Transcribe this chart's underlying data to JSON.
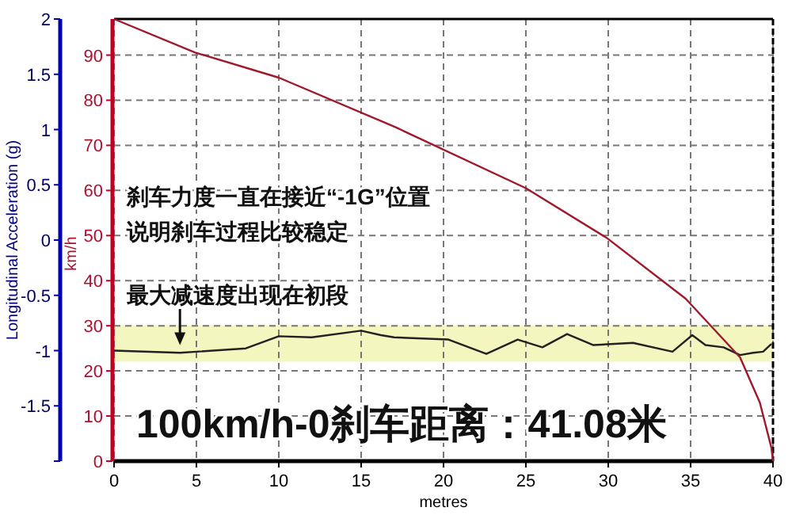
{
  "chart_data": {
    "type": "line",
    "xlabel": "metres",
    "ylabel": "Longitudinal Acceleration (g)",
    "y2label": "km/h",
    "xlim": [
      0,
      40
    ],
    "xticks": [
      0,
      5,
      10,
      15,
      20,
      25,
      30,
      35,
      40
    ],
    "ylim": [
      -2,
      2
    ],
    "yticks": [
      {
        "value": -2,
        "label": null
      },
      -1.5,
      -1,
      -0.5,
      0,
      0.5,
      1,
      1.5,
      2
    ],
    "y2lim": [
      0,
      98
    ],
    "y2ticks": [
      0,
      10,
      20,
      30,
      40,
      50,
      60,
      70,
      80,
      90
    ],
    "grid": true,
    "line_style": "solid",
    "marker": "none",
    "series": [
      {
        "color": "#222222",
        "x": [
          0,
          4,
          8,
          10,
          12,
          15,
          16.2,
          17,
          20.3,
          22.6,
          24.5,
          26,
          27.5,
          29.1,
          31.5,
          33.9,
          35.1,
          35.9,
          37,
          38,
          38.8,
          39.4,
          39.9
        ],
        "values": [
          -1.0,
          -1.02,
          -0.98,
          -0.87,
          -0.88,
          -0.82,
          -0.86,
          -0.88,
          -0.9,
          -1.03,
          -0.9,
          -0.97,
          -0.85,
          -0.95,
          -0.93,
          -1.01,
          -0.86,
          -0.95,
          -0.97,
          -1.04,
          -1.02,
          -1.01,
          -0.94
        ]
      },
      {
        "color": "#a0192b",
        "axis": "y2",
        "x": [
          0,
          4.9,
          10,
          17.1,
          25,
          29.9,
          34.7,
          38,
          39.2,
          39.9,
          40
        ],
        "values": [
          98,
          90.6,
          85,
          74,
          60.5,
          49.5,
          36,
          23,
          13,
          3,
          0
        ]
      }
    ],
    "bands": [
      {
        "axis": "y",
        "from": -1.1,
        "to": -0.77,
        "color": "#f4f6bf"
      }
    ],
    "annotations": [
      "刹车力度一直在接近“-1G”位置",
      "说明刹车过程比较稳定",
      {
        "text": "最大减速度出现在初段",
        "x": 4,
        "y": -0.95
      },
      "100km/h-0刹车距离：41.08米"
    ]
  }
}
